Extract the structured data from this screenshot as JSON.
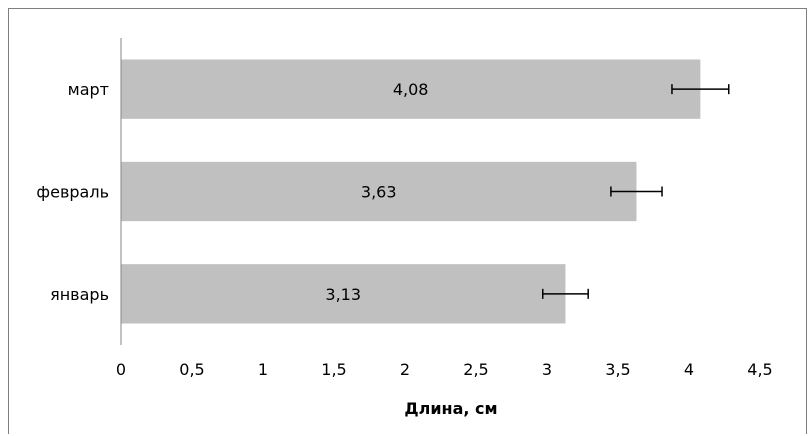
{
  "chart_data": {
    "type": "bar",
    "orientation": "horizontal",
    "categories": [
      "март",
      "февраль",
      "январь"
    ],
    "values": [
      4.08,
      3.63,
      3.13
    ],
    "value_labels": [
      "4,08",
      "3,63",
      "3,13"
    ],
    "error_bars": {
      "lower": [
        3.88,
        3.45,
        2.97
      ],
      "upper": [
        4.28,
        3.81,
        3.29
      ]
    },
    "xlabel": "Длина, см",
    "ylabel": "",
    "xlim": [
      0,
      4.5
    ],
    "xticks": [
      0,
      0.5,
      1,
      1.5,
      2,
      2.5,
      3,
      3.5,
      4,
      4.5
    ],
    "xtick_labels": [
      "0",
      "0,5",
      "1",
      "1,5",
      "2",
      "2,5",
      "3",
      "3,5",
      "4",
      "4,5"
    ],
    "grid": false,
    "legend": "none",
    "colors": {
      "bar": "#c0c0c0",
      "axis": "#868686",
      "error_bar": "#000000",
      "frame": "#7f7f7f"
    }
  }
}
